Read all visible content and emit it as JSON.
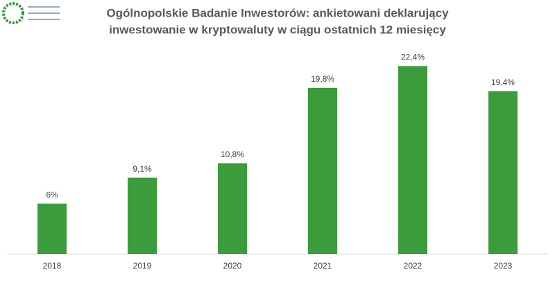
{
  "chart_data": {
    "type": "bar",
    "title": [
      "Ogólnopolskie Badanie Inwestorów: ankietowani deklarujący",
      "inwestowanie w kryptowaluty w ciągu ostatnich 12 miesięcy"
    ],
    "categories": [
      "2018",
      "2019",
      "2020",
      "2021",
      "2022",
      "2023"
    ],
    "values": [
      6,
      9.1,
      10.8,
      19.8,
      22.4,
      19.4
    ],
    "value_labels": [
      "6%",
      "9,1%",
      "10,8%",
      "19,8%",
      "22,4%",
      "19,4%"
    ],
    "color": "#3a9c3a",
    "ylim": [
      0,
      24
    ]
  }
}
